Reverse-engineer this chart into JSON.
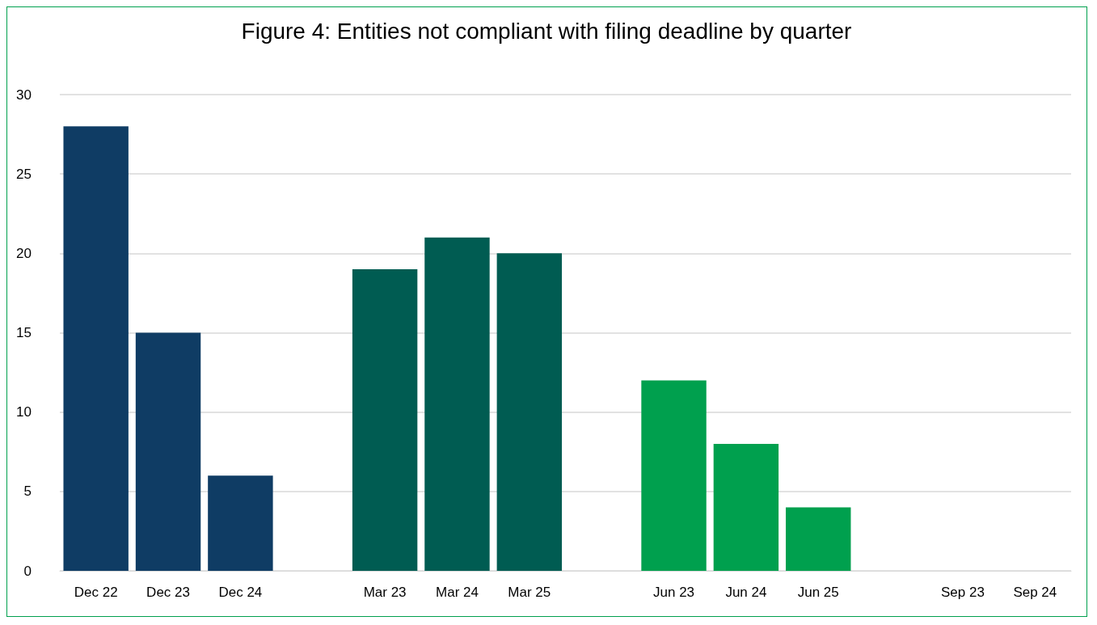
{
  "chart_data": {
    "type": "bar",
    "title": "Figure 4: Entities not compliant with filing deadline by quarter",
    "categories": [
      "Dec 22",
      "Dec 23",
      "Dec 24",
      null,
      "Mar 23",
      "Mar 24",
      "Mar 25",
      null,
      "Jun 23",
      "Jun 24",
      "Jun 25",
      null,
      "Sep 23",
      "Sep 24"
    ],
    "values": [
      28,
      15,
      6,
      null,
      19,
      21,
      20,
      null,
      12,
      8,
      4,
      null,
      0,
      0
    ],
    "colors": [
      "#0f3c64",
      "#0f3c64",
      "#0f3c64",
      "#0f3c64",
      "#005c52",
      "#005c52",
      "#005c52",
      "#005c52",
      "#00a04e",
      "#00a04e",
      "#00a04e",
      "#00a04e",
      "#00a04e",
      "#00a04e"
    ],
    "ylim": [
      0,
      30
    ],
    "yticks": [
      0,
      5,
      10,
      15,
      20,
      25,
      30
    ],
    "grid": "y"
  }
}
